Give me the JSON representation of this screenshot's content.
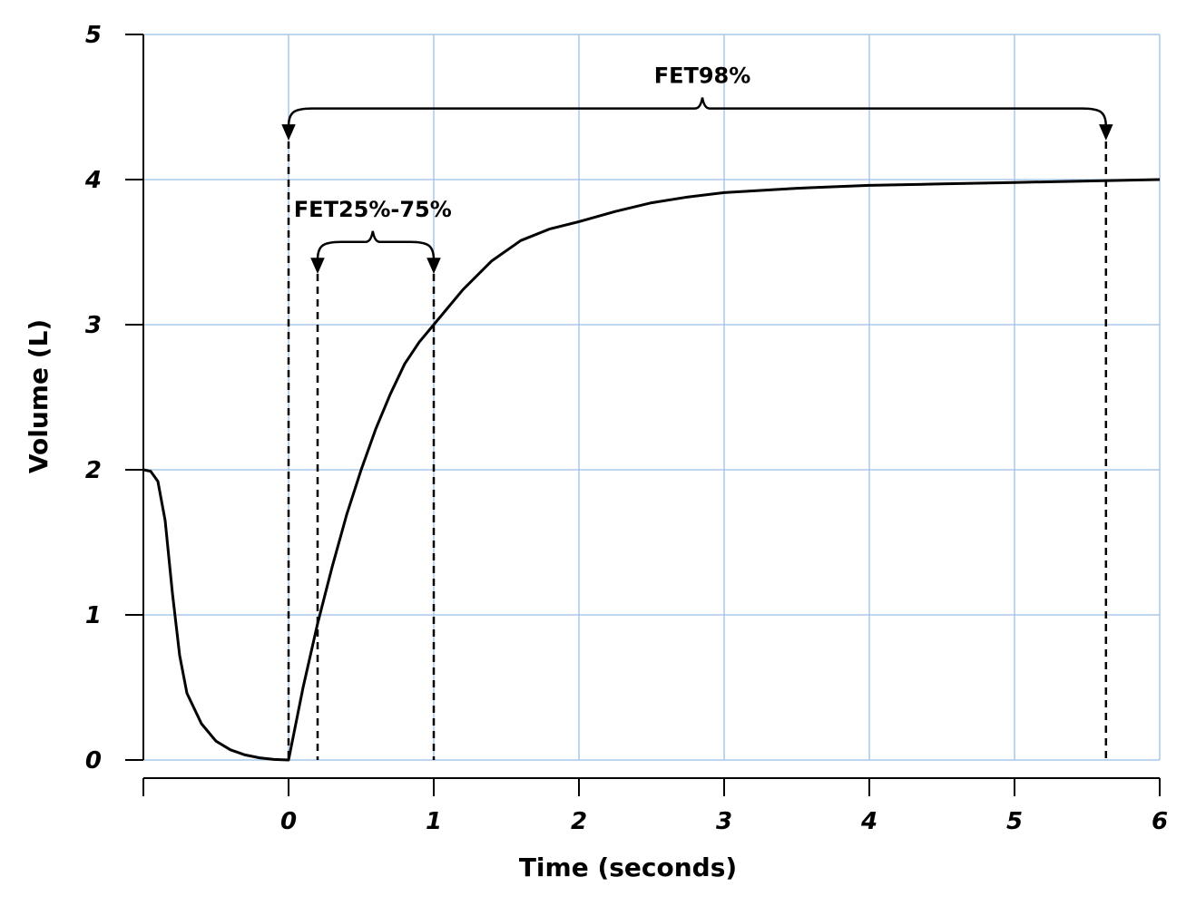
{
  "chart_data": {
    "type": "line",
    "title": "",
    "xlabel": "Time (seconds)",
    "ylabel": "Volume (L)",
    "xlim": [
      -1,
      6
    ],
    "ylim": [
      0,
      5
    ],
    "x_ticks": [
      "0",
      "1",
      "2",
      "3",
      "4",
      "5",
      "6"
    ],
    "x_tick_values": [
      0,
      1,
      2,
      3,
      4,
      5,
      6
    ],
    "y_ticks": [
      "0",
      "1",
      "2",
      "3",
      "4",
      "5"
    ],
    "y_tick_values": [
      0,
      1,
      2,
      3,
      4,
      5
    ],
    "grid": true,
    "grid_color": "#a8c8e8",
    "line_color": "#000000",
    "series": [
      {
        "points": [
          [
            -1.0,
            2.0
          ],
          [
            -0.95,
            1.99
          ],
          [
            -0.9,
            1.92
          ],
          [
            -0.85,
            1.65
          ],
          [
            -0.8,
            1.15
          ],
          [
            -0.75,
            0.72
          ],
          [
            -0.7,
            0.46
          ],
          [
            -0.6,
            0.25
          ],
          [
            -0.5,
            0.13
          ],
          [
            -0.4,
            0.07
          ],
          [
            -0.3,
            0.035
          ],
          [
            -0.2,
            0.015
          ],
          [
            -0.1,
            0.004
          ],
          [
            0.0,
            0.0
          ],
          [
            0.1,
            0.5
          ],
          [
            0.2,
            0.94
          ],
          [
            0.3,
            1.33
          ],
          [
            0.4,
            1.69
          ],
          [
            0.5,
            2.0
          ],
          [
            0.6,
            2.28
          ],
          [
            0.7,
            2.52
          ],
          [
            0.8,
            2.73
          ],
          [
            0.9,
            2.88
          ],
          [
            1.0,
            3.0
          ],
          [
            1.2,
            3.24
          ],
          [
            1.4,
            3.44
          ],
          [
            1.6,
            3.58
          ],
          [
            1.8,
            3.66
          ],
          [
            2.0,
            3.71
          ],
          [
            2.25,
            3.78
          ],
          [
            2.5,
            3.84
          ],
          [
            2.75,
            3.88
          ],
          [
            3.0,
            3.91
          ],
          [
            3.5,
            3.94
          ],
          [
            4.0,
            3.96
          ],
          [
            4.5,
            3.97
          ],
          [
            5.0,
            3.98
          ],
          [
            5.5,
            3.99
          ],
          [
            6.0,
            4.0
          ]
        ]
      }
    ],
    "markers": [
      {
        "name": "t0",
        "x": 0.0,
        "y_top": 4.35
      },
      {
        "name": "t25",
        "x": 0.2,
        "y_top": 3.35
      },
      {
        "name": "t75",
        "x": 1.0,
        "y_top": 3.35
      },
      {
        "name": "t98",
        "x": 5.63,
        "y_top": 4.35
      }
    ],
    "annotations": [
      {
        "label": "FET98%",
        "x_start": 0.0,
        "x_end": 5.63,
        "x_peak": 2.85,
        "y_brace": 4.49
      },
      {
        "label": "FET25%-75%",
        "x_start": 0.2,
        "x_end": 1.0,
        "x_peak": 0.58,
        "y_brace": 3.57
      }
    ]
  }
}
